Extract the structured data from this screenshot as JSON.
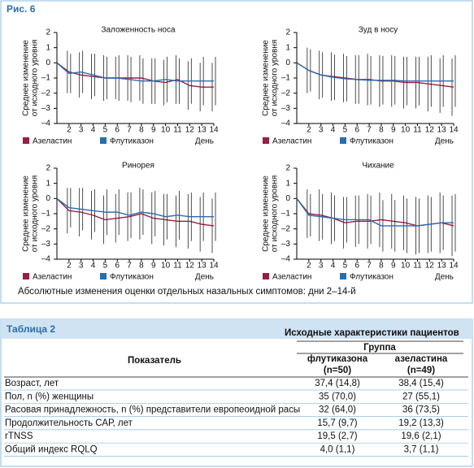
{
  "figure": {
    "label": "Рис. 6",
    "caption": "Абсолютные изменения оценки отдельных назальных симптомов: дни 2–14-й"
  },
  "chart_data": [
    {
      "type": "line",
      "title": "Заложенность носа",
      "ylabel": [
        "Среднее изменение",
        "от исходного уровня"
      ],
      "xlabel": "День",
      "x": [
        1,
        2,
        3,
        4,
        5,
        6,
        7,
        8,
        9,
        10,
        11,
        12,
        13,
        14
      ],
      "xlim": [
        1,
        14
      ],
      "xticks": [
        2,
        3,
        4,
        5,
        6,
        7,
        8,
        9,
        10,
        11,
        12,
        13,
        14
      ],
      "ylim": [
        -4,
        2
      ],
      "yticks": [
        {
          "value": -4,
          "label": "–4"
        },
        {
          "value": -3,
          "label": "–3"
        },
        {
          "value": -2,
          "label": "–2"
        },
        {
          "value": -1,
          "label": "–1"
        },
        0,
        1,
        2
      ],
      "series": [
        {
          "name": "Азеластин",
          "color": "#9b1d42",
          "values": [
            0,
            -0.6,
            -0.8,
            -0.9,
            -1.0,
            -1.0,
            -1.0,
            -1.0,
            -1.2,
            -1.3,
            -1.1,
            -1.5,
            -1.6,
            -1.6
          ],
          "errors": [
            null,
            1.4,
            1.5,
            1.5,
            1.5,
            1.4,
            1.5,
            1.5,
            1.5,
            1.5,
            1.6,
            1.6,
            1.6,
            1.6
          ]
        },
        {
          "name": "Флутиказон",
          "color": "#2b6cb0",
          "values": [
            0,
            -0.7,
            -0.6,
            -0.8,
            -1.0,
            -1.0,
            -1.1,
            -1.2,
            -1.2,
            -1.1,
            -1.2,
            -1.2,
            -1.2,
            -1.2
          ],
          "errors": [
            null,
            1.3,
            1.4,
            1.4,
            1.4,
            1.5,
            1.5,
            1.5,
            1.5,
            1.5,
            1.5,
            1.5,
            1.6,
            1.6
          ]
        }
      ]
    },
    {
      "type": "line",
      "title": "Зуд в носу",
      "ylabel": [
        "Среднее изменение",
        "от исходного уровня"
      ],
      "xlabel": "День",
      "x": [
        1,
        2,
        3,
        4,
        5,
        6,
        7,
        8,
        9,
        10,
        11,
        12,
        13,
        14
      ],
      "xlim": [
        1,
        14
      ],
      "xticks": [
        2,
        3,
        4,
        5,
        6,
        7,
        8,
        9,
        10,
        11,
        12,
        13,
        14
      ],
      "ylim": [
        -4,
        2
      ],
      "yticks": [
        {
          "value": -4,
          "label": "–4"
        },
        {
          "value": -3,
          "label": "–3"
        },
        {
          "value": -2,
          "label": "–2"
        },
        {
          "value": -1,
          "label": "–1"
        },
        0,
        1,
        2
      ],
      "series": [
        {
          "name": "Азеластин",
          "color": "#9b1d42",
          "values": [
            0,
            -0.5,
            -0.8,
            -0.9,
            -1.0,
            -1.1,
            -1.1,
            -1.2,
            -1.2,
            -1.3,
            -1.3,
            -1.4,
            -1.5,
            -1.6
          ],
          "errors": [
            null,
            1.5,
            1.6,
            1.6,
            1.6,
            1.6,
            1.7,
            1.7,
            1.7,
            1.7,
            1.7,
            1.8,
            1.8,
            1.9
          ]
        },
        {
          "name": "Флутиказон",
          "color": "#2b6cb0",
          "values": [
            0,
            -0.5,
            -0.8,
            -0.95,
            -1.05,
            -1.1,
            -1.15,
            -1.15,
            -1.15,
            -1.2,
            -1.2,
            -1.2,
            -1.2,
            -1.2
          ],
          "errors": [
            null,
            1.4,
            1.5,
            1.5,
            1.5,
            1.6,
            1.6,
            1.6,
            1.6,
            1.6,
            1.6,
            1.7,
            1.7,
            1.7
          ]
        }
      ]
    },
    {
      "type": "line",
      "title": "Ринорея",
      "ylabel": [
        "Среднее изменение",
        "от исходного уровня"
      ],
      "xlabel": "День",
      "x": [
        1,
        2,
        3,
        4,
        5,
        6,
        7,
        8,
        9,
        10,
        11,
        12,
        13,
        14
      ],
      "xlim": [
        1,
        14
      ],
      "xticks": [
        2,
        3,
        4,
        5,
        6,
        7,
        8,
        9,
        10,
        11,
        12,
        13,
        14
      ],
      "ylim": [
        -4,
        2
      ],
      "yticks": [
        {
          "value": -4,
          "label": "–4"
        },
        {
          "value": -3,
          "label": "–3"
        },
        {
          "value": -2,
          "label": "–2"
        },
        {
          "value": -1,
          "label": "–1"
        },
        0,
        1,
        2
      ],
      "series": [
        {
          "name": "Азеластин",
          "color": "#9b1d42",
          "values": [
            0,
            -0.8,
            -0.9,
            -1.1,
            -1.4,
            -1.3,
            -1.2,
            -1.0,
            -1.3,
            -1.4,
            -1.5,
            -1.5,
            -1.7,
            -1.8
          ],
          "errors": [
            null,
            1.5,
            1.6,
            1.6,
            1.6,
            1.6,
            1.6,
            1.7,
            1.7,
            1.7,
            1.7,
            1.8,
            1.8,
            1.8
          ]
        },
        {
          "name": "Флутиказон",
          "color": "#2b6cb0",
          "values": [
            0,
            -0.6,
            -0.7,
            -0.8,
            -0.9,
            -0.9,
            -1.1,
            -0.9,
            -1.0,
            -1.2,
            -1.1,
            -1.2,
            -1.2,
            -1.2
          ],
          "errors": [
            null,
            1.3,
            1.4,
            1.4,
            1.5,
            1.5,
            1.5,
            1.5,
            1.5,
            1.5,
            1.6,
            1.6,
            1.6,
            1.6
          ]
        }
      ]
    },
    {
      "type": "line",
      "title": "Чихание",
      "ylabel": [
        "Среднее изменение",
        "от исходного уровня"
      ],
      "xlabel": "День",
      "x": [
        1,
        2,
        3,
        4,
        5,
        6,
        7,
        8,
        9,
        10,
        11,
        12,
        13,
        14
      ],
      "xlim": [
        1,
        14
      ],
      "xticks": [
        2,
        3,
        4,
        5,
        6,
        7,
        8,
        9,
        10,
        11,
        12,
        13,
        14
      ],
      "ylim": [
        -4,
        2
      ],
      "yticks": [
        {
          "value": -4,
          "label": "–4"
        },
        {
          "value": -3,
          "label": "–3"
        },
        {
          "value": -2,
          "label": "–2"
        },
        {
          "value": -1,
          "label": "–1"
        },
        0,
        1,
        2
      ],
      "series": [
        {
          "name": "Азеластин",
          "color": "#9b1d42",
          "values": [
            0,
            -1.0,
            -1.1,
            -1.3,
            -1.6,
            -1.5,
            -1.5,
            -1.4,
            -1.5,
            -1.6,
            -1.8,
            -1.7,
            -1.6,
            -1.8
          ],
          "errors": [
            null,
            1.6,
            1.7,
            1.7,
            1.7,
            1.7,
            1.8,
            1.8,
            1.8,
            1.8,
            1.9,
            1.9,
            2.0,
            2.0
          ]
        },
        {
          "name": "Флутиказон",
          "color": "#2b6cb0",
          "values": [
            0,
            -1.1,
            -1.2,
            -1.3,
            -1.4,
            -1.4,
            -1.4,
            -1.8,
            -1.8,
            -1.8,
            -1.8,
            -1.7,
            -1.6,
            -1.6
          ],
          "errors": [
            null,
            1.4,
            1.5,
            1.5,
            1.5,
            1.6,
            1.6,
            1.7,
            1.7,
            1.8,
            1.8,
            1.8,
            1.8,
            1.9
          ]
        }
      ]
    }
  ],
  "table": {
    "title": "Таблица 2",
    "heading": "Исходные характеристики пациентов",
    "header": {
      "label": "Показатель",
      "group": "Группа",
      "cols": [
        [
          "флутиказона",
          "(n=50)"
        ],
        [
          "азеластина",
          "(n=49)"
        ]
      ]
    },
    "rows": [
      [
        "Возраст, лет",
        "37,4 (14,8)",
        "38,4 (15,4)"
      ],
      [
        "Пол, n (%) женщины",
        "35 (70,0)",
        "27 (55,1)"
      ],
      [
        "Расовая принадлежность, n (%) представители европеоидной расы",
        "32 (64,0)",
        "36 (73,5)"
      ],
      [
        "Продолжительность САР, лет",
        "15,7 (9,7)",
        "19,2 (13,3)"
      ],
      [
        "rTNSS",
        "19,5 (2,7)",
        "19,6 (2,1)"
      ],
      [
        "Общий индекс RQLQ",
        "4,0 (1,1)",
        "3,7 (1,1)"
      ]
    ]
  }
}
